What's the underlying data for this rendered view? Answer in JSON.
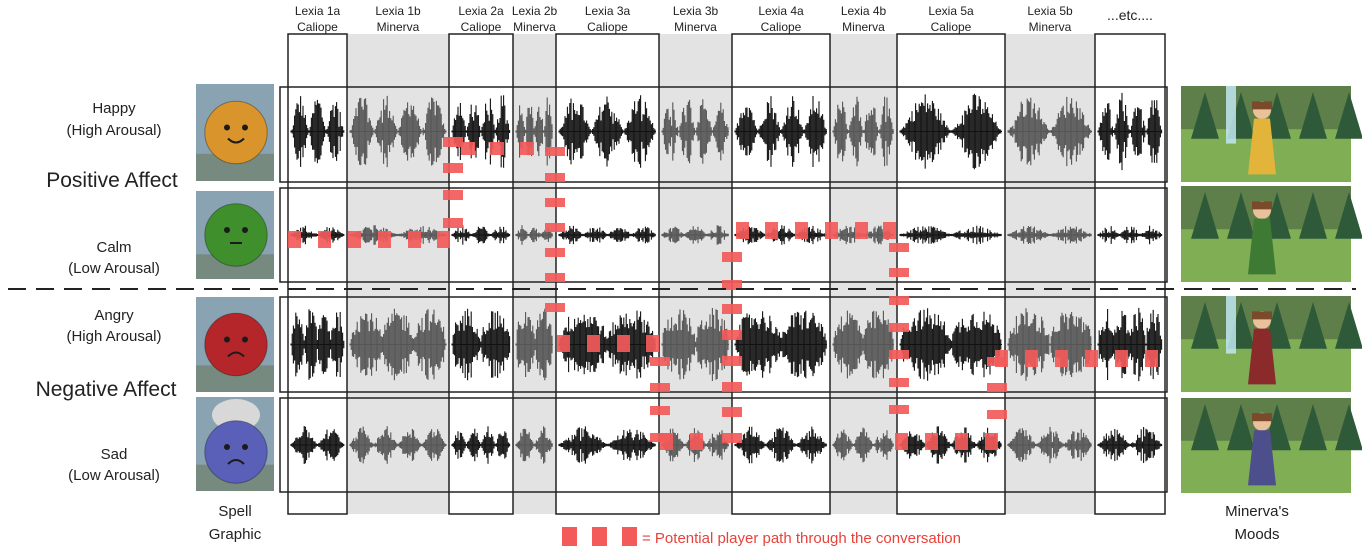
{
  "columns": [
    {
      "line1": "Lexia 1a",
      "line2": "Caliope",
      "speaker": "caliope"
    },
    {
      "line1": "Lexia 1b",
      "line2": "Minerva",
      "speaker": "minerva"
    },
    {
      "line1": "Lexia 2a",
      "line2": "Caliope",
      "speaker": "caliope"
    },
    {
      "line1": "Lexia 2b",
      "line2": "Minerva",
      "speaker": "minerva"
    },
    {
      "line1": "Lexia 3a",
      "line2": "Caliope",
      "speaker": "caliope"
    },
    {
      "line1": "Lexia 3b",
      "line2": "Minerva",
      "speaker": "minerva"
    },
    {
      "line1": "Lexia 4a",
      "line2": "Caliope",
      "speaker": "caliope"
    },
    {
      "line1": "Lexia 4b",
      "line2": "Minerva",
      "speaker": "minerva"
    },
    {
      "line1": "Lexia 5a",
      "line2": "Caliope",
      "speaker": "caliope"
    },
    {
      "line1": "Lexia 5b",
      "line2": "Minerva",
      "speaker": "minerva"
    },
    {
      "line1": "...etc....",
      "line2": "",
      "speaker": "caliope"
    }
  ],
  "rows": [
    {
      "line1": "Happy",
      "line2": "(High Arousal)",
      "spell_color": "#d9952b",
      "mood_dress": "#e2b43a"
    },
    {
      "line1": "Calm",
      "line2": "(Low Arousal)",
      "spell_color": "#3f8f2c",
      "mood_dress": "#3f7a35"
    },
    {
      "line1": "Angry",
      "line2": "(High Arousal)",
      "spell_color": "#b4262a",
      "mood_dress": "#8a2a2a"
    },
    {
      "line1": "Sad",
      "line2": "(Low Arousal)",
      "spell_color": "#5a5fb8",
      "mood_dress": "#4c4f8c"
    }
  ],
  "groups": {
    "positive": "Positive Affect",
    "negative": "Negative Affect"
  },
  "left_caption": {
    "line1": "Spell",
    "line2": "Graphic"
  },
  "right_caption": {
    "line1": "Minerva's",
    "line2": "Moods"
  },
  "legend": {
    "text": "= Potential player path through the conversation"
  },
  "colors": {
    "minerva_shade": "#e3e3e3",
    "waveform_caliope": "#111111",
    "waveform_minerva": "#555555",
    "path": "#f35a5a",
    "legend_text": "#e8423a"
  }
}
